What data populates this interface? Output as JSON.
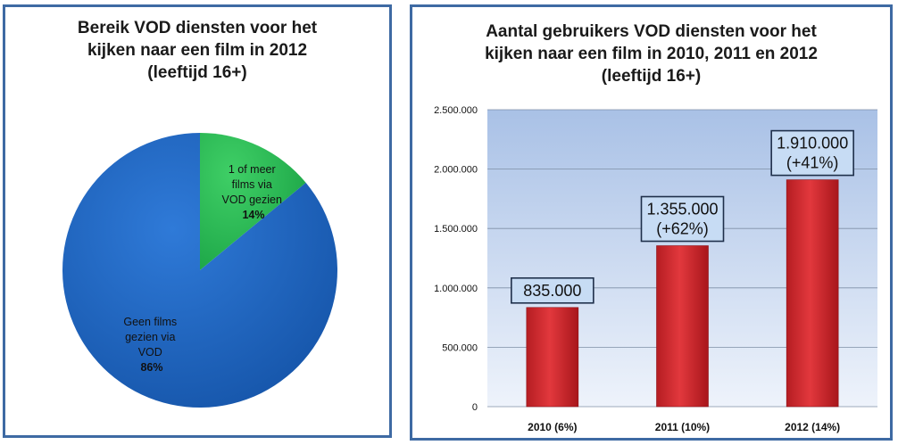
{
  "chart_data": [
    {
      "type": "pie",
      "title_lines": [
        "Bereik VOD diensten voor het",
        "kijken naar een film in 2012",
        "(leeftijd 16+)"
      ],
      "slices": [
        {
          "label_lines": [
            "1 of meer",
            "films via",
            "VOD gezien"
          ],
          "value": 14,
          "value_label": "14%"
        },
        {
          "label_lines": [
            "Geen films",
            "gezien via",
            "VOD"
          ],
          "value": 86,
          "value_label": "86%"
        }
      ],
      "colors": {
        "slice_1": "#22b24c",
        "slice_2": "#1a63c0"
      }
    },
    {
      "type": "bar",
      "title_lines": [
        "Aantal gebruikers VOD diensten voor het",
        "kijken naar een film in 2010, 2011 en 2012",
        "(leeftijd 16+)"
      ],
      "categories": [
        "2010 (6%)",
        "2011 (10%)",
        "2012 (14%)"
      ],
      "values": [
        835000,
        1355000,
        1910000
      ],
      "data_labels": [
        [
          "835.000"
        ],
        [
          "1.355.000",
          "(+62%)"
        ],
        [
          "1.910.000",
          "(+41%)"
        ]
      ],
      "y_ticks": [
        0,
        500000,
        1000000,
        1500000,
        2000000,
        2500000
      ],
      "y_tick_labels": [
        "0",
        "500.000",
        "1.000.000",
        "1.500.000",
        "2.000.000",
        "2.500.000"
      ],
      "ylim": [
        0,
        2500000
      ],
      "grid": true,
      "colors": {
        "bar": "#d8262c",
        "plot_bg_top": "#a9c1e6",
        "plot_bg_bottom": "#eef3fb",
        "label_box": "#c7dcf4"
      }
    }
  ]
}
